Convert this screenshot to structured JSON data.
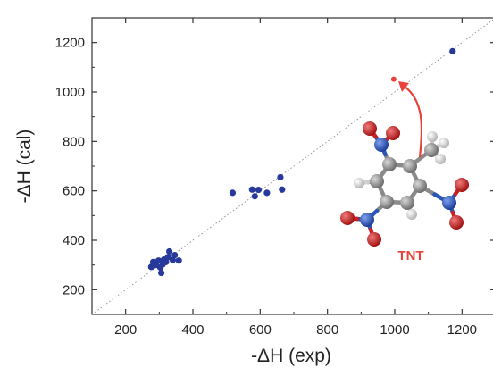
{
  "chart_data": {
    "type": "scatter",
    "title": "",
    "xlabel": "-ΔH (exp)",
    "ylabel": "-ΔH (cal)",
    "xlim": [
      100,
      1300
    ],
    "ylim": [
      100,
      1300
    ],
    "xticks": [
      200,
      400,
      600,
      800,
      1000,
      1200
    ],
    "yticks": [
      200,
      400,
      600,
      800,
      1000,
      1200
    ],
    "grid": false,
    "reference_line": "y = x",
    "series": [
      {
        "color": "#27399a",
        "points": [
          {
            "x": 276,
            "y": 292
          },
          {
            "x": 282,
            "y": 312
          },
          {
            "x": 290,
            "y": 300
          },
          {
            "x": 298,
            "y": 318
          },
          {
            "x": 303,
            "y": 290
          },
          {
            "x": 306,
            "y": 268
          },
          {
            "x": 310,
            "y": 302
          },
          {
            "x": 314,
            "y": 322
          },
          {
            "x": 320,
            "y": 312
          },
          {
            "x": 326,
            "y": 332
          },
          {
            "x": 330,
            "y": 355
          },
          {
            "x": 340,
            "y": 320
          },
          {
            "x": 346,
            "y": 340
          },
          {
            "x": 358,
            "y": 318
          },
          {
            "x": 518,
            "y": 592
          },
          {
            "x": 576,
            "y": 605
          },
          {
            "x": 584,
            "y": 578
          },
          {
            "x": 595,
            "y": 604
          },
          {
            "x": 620,
            "y": 592
          },
          {
            "x": 660,
            "y": 655
          },
          {
            "x": 665,
            "y": 605
          },
          {
            "x": 1172,
            "y": 1165
          }
        ]
      },
      {
        "color": "#e8423a",
        "points": [
          {
            "x": 997,
            "y": 1052
          }
        ]
      }
    ],
    "annotations": [
      {
        "text": "TNT",
        "color": "#e8423a"
      }
    ]
  },
  "colors": {
    "molecule_carbon": "#8a8a8a",
    "molecule_hydrogen": "#e0e0e0",
    "molecule_nitrogen": "#2b55b8",
    "molecule_oxygen": "#cc1f1f"
  }
}
